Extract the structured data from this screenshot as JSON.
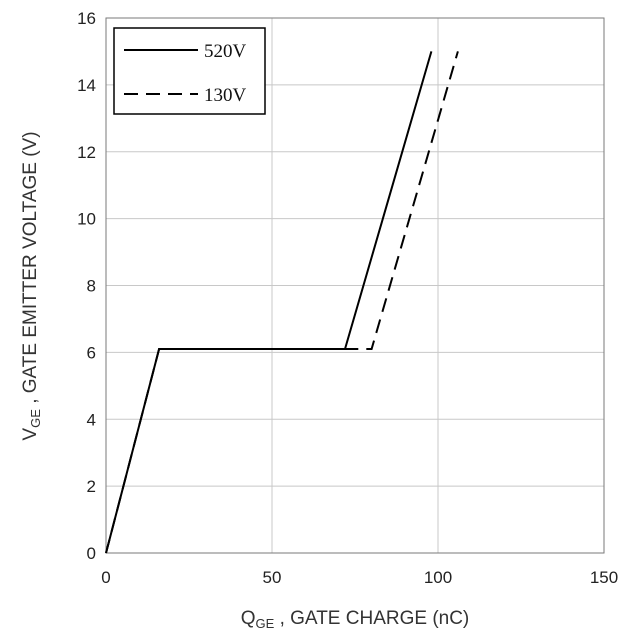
{
  "chart_data": {
    "type": "line",
    "title": "",
    "xlabel": {
      "main": "Q",
      "sub": "GE",
      "rest": " , GATE CHARGE (nC)"
    },
    "ylabel": {
      "main": "V",
      "sub": "GE",
      "rest": " , GATE  EMITTER  VOLTAGE (V)"
    },
    "xlim": [
      0,
      150
    ],
    "ylim": [
      0,
      16
    ],
    "xticks": [
      0,
      50,
      100,
      150
    ],
    "yticks": [
      0,
      2,
      4,
      6,
      8,
      10,
      12,
      14,
      16
    ],
    "xtick_labels": [
      "0",
      "50",
      "100",
      "150"
    ],
    "ytick_labels": [
      "0",
      "2",
      "4",
      "6",
      "8",
      "10",
      "12",
      "14",
      "16"
    ],
    "grid": true,
    "legend_position": "top-left",
    "series": [
      {
        "name": "520V",
        "style": "solid",
        "color": "#000000",
        "x": [
          0,
          16,
          72,
          98
        ],
        "y": [
          0,
          6.1,
          6.1,
          15
        ]
      },
      {
        "name": "130V",
        "style": "dashed",
        "color": "#000000",
        "x": [
          0,
          16,
          80,
          106
        ],
        "y": [
          0,
          6.1,
          6.1,
          15
        ]
      }
    ]
  }
}
